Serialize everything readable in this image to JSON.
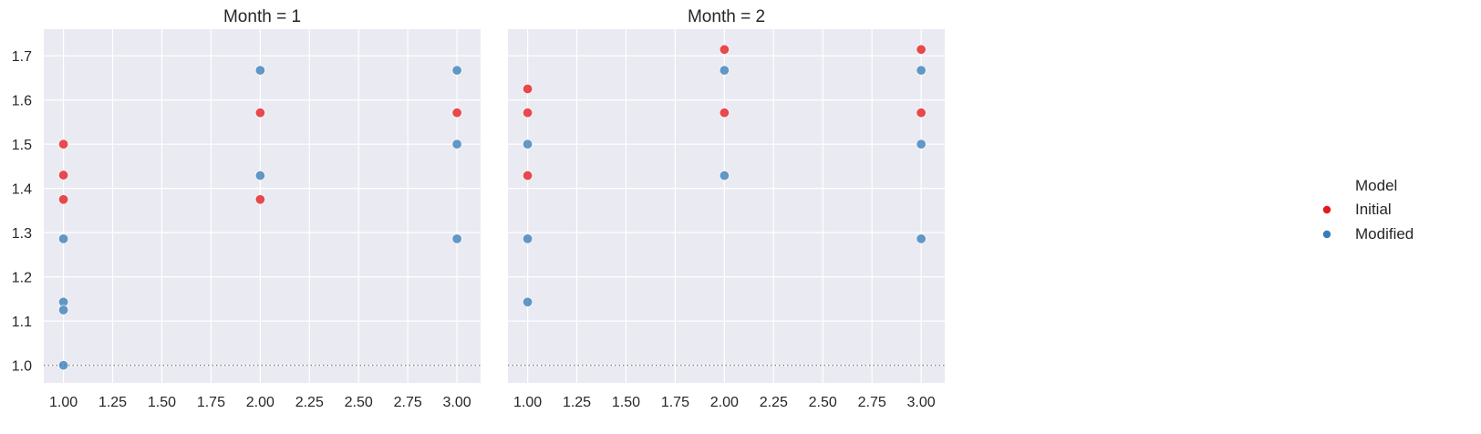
{
  "chart_data": {
    "type": "scatter",
    "facet_variable": "Month",
    "legend": {
      "title": "Model",
      "placement": "right",
      "entries": [
        {
          "label": "Initial",
          "color": "#e41a1c"
        },
        {
          "label": "Modified",
          "color": "#377eb8"
        }
      ]
    },
    "colors": {
      "Initial": "#e41a1c",
      "Modified": "#377eb8",
      "background": "#eaeaf2",
      "grid": "#ffffff",
      "reference_line": "#808080"
    },
    "xlim": [
      0.9,
      3.12
    ],
    "ylim": [
      0.96,
      1.76
    ],
    "x_ticks": [
      "1.00",
      "1.25",
      "1.50",
      "1.75",
      "2.00",
      "2.25",
      "2.50",
      "2.75",
      "3.00"
    ],
    "y_ticks": [
      "1.0",
      "1.1",
      "1.2",
      "1.3",
      "1.4",
      "1.5",
      "1.6",
      "1.7"
    ],
    "grid": true,
    "reference_line": {
      "y": 1.0,
      "style": "dotted"
    },
    "panels": [
      {
        "title": "Month = 1",
        "series": [
          {
            "name": "Initial",
            "points": [
              [
                1,
                1.5
              ],
              [
                1,
                1.43
              ],
              [
                1,
                1.375
              ],
              [
                2,
                1.571
              ],
              [
                2,
                1.375
              ],
              [
                3,
                1.571
              ]
            ]
          },
          {
            "name": "Modified",
            "points": [
              [
                1,
                1.286
              ],
              [
                1,
                1.143
              ],
              [
                1,
                1.125
              ],
              [
                1,
                1.0
              ],
              [
                2,
                1.667
              ],
              [
                2,
                1.429
              ],
              [
                3,
                1.667
              ],
              [
                3,
                1.5
              ],
              [
                3,
                1.286
              ]
            ]
          }
        ]
      },
      {
        "title": "Month = 2",
        "series": [
          {
            "name": "Initial",
            "points": [
              [
                1,
                1.625
              ],
              [
                1,
                1.571
              ],
              [
                1,
                1.429
              ],
              [
                2,
                1.714
              ],
              [
                2,
                1.571
              ],
              [
                3,
                1.714
              ],
              [
                3,
                1.571
              ]
            ]
          },
          {
            "name": "Modified",
            "points": [
              [
                1,
                1.5
              ],
              [
                1,
                1.286
              ],
              [
                1,
                1.143
              ],
              [
                2,
                1.667
              ],
              [
                2,
                1.429
              ],
              [
                3,
                1.667
              ],
              [
                3,
                1.5
              ],
              [
                3,
                1.286
              ]
            ]
          }
        ]
      }
    ]
  }
}
